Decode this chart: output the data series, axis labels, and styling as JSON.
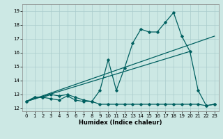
{
  "title": "",
  "xlabel": "Humidex (Indice chaleur)",
  "bg_color": "#cce8e4",
  "grid_color": "#aacccc",
  "line_color": "#006060",
  "xlim": [
    -0.5,
    23.5
  ],
  "ylim": [
    11.8,
    19.5
  ],
  "xticks": [
    0,
    1,
    2,
    3,
    4,
    5,
    6,
    7,
    8,
    9,
    10,
    11,
    12,
    13,
    14,
    15,
    16,
    17,
    18,
    19,
    20,
    21,
    22,
    23
  ],
  "yticks": [
    12,
    13,
    14,
    15,
    16,
    17,
    18,
    19
  ],
  "line_flat_x": [
    0,
    1,
    2,
    3,
    4,
    5,
    6,
    7,
    8,
    9,
    10,
    11,
    12,
    13,
    14,
    15,
    16,
    17,
    18,
    19,
    20,
    21,
    22,
    23
  ],
  "line_flat_y": [
    12.5,
    12.8,
    12.8,
    12.7,
    12.6,
    12.9,
    12.6,
    12.5,
    12.5,
    12.3,
    12.3,
    12.3,
    12.3,
    12.3,
    12.3,
    12.3,
    12.3,
    12.3,
    12.3,
    12.3,
    12.3,
    12.3,
    12.2,
    12.3
  ],
  "line_main_x": [
    0,
    1,
    2,
    3,
    4,
    5,
    6,
    7,
    8,
    9,
    10,
    11,
    12,
    13,
    14,
    15,
    16,
    17,
    18,
    19,
    20,
    21,
    22,
    23
  ],
  "line_main_y": [
    12.5,
    12.8,
    12.8,
    13.0,
    12.9,
    13.0,
    12.8,
    12.6,
    12.5,
    13.3,
    15.5,
    13.3,
    14.9,
    16.7,
    17.7,
    17.5,
    17.5,
    18.2,
    18.9,
    17.2,
    16.1,
    13.3,
    12.2,
    12.3
  ],
  "trend1_x": [
    0,
    23
  ],
  "trend1_y": [
    12.5,
    17.2
  ],
  "trend2_x": [
    0,
    20
  ],
  "trend2_y": [
    12.5,
    16.1
  ]
}
